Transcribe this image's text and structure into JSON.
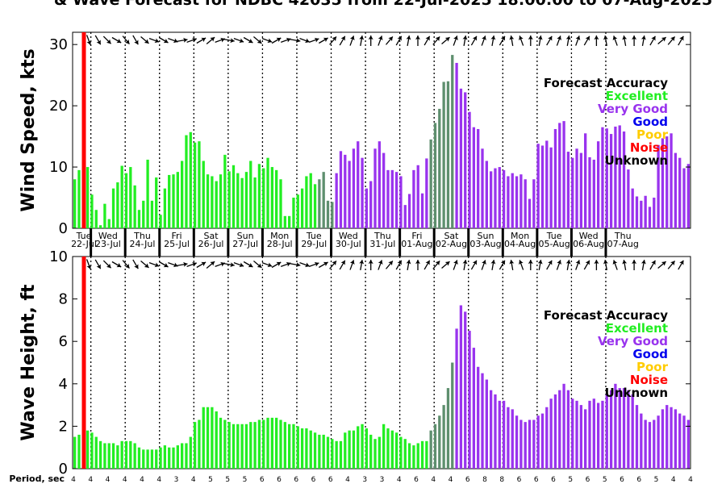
{
  "title": "& Wave Forecast for NDBC 42035 from 22-Jul-2025 18:00:00 to 07-Aug-2025",
  "legend": {
    "heading": "Forecast Accuracy",
    "items": [
      {
        "label": "Excellent",
        "color": "#22ee22"
      },
      {
        "label": "Very Good",
        "color": "#9933ee"
      },
      {
        "label": "Good",
        "color": "#0000ee"
      },
      {
        "label": "Poor",
        "color": "#ffcc00"
      },
      {
        "label": "Noise",
        "color": "#ff0000"
      },
      {
        "label": "Unknown",
        "color": "#000000"
      }
    ]
  },
  "colors": {
    "excellent": "#22ee22",
    "very_good": "#9933ee",
    "transition": "#5e8f6e",
    "now_line": "#ff0000"
  },
  "days": [
    {
      "dow": "Tue",
      "date": "22-Jul"
    },
    {
      "dow": "Wed",
      "date": "23-Jul"
    },
    {
      "dow": "Thu",
      "date": "24-Jul"
    },
    {
      "dow": "Fri",
      "date": "25-Jul"
    },
    {
      "dow": "Sat",
      "date": "26-Jul"
    },
    {
      "dow": "Sun",
      "date": "27-Jul"
    },
    {
      "dow": "Mon",
      "date": "28-Jul"
    },
    {
      "dow": "Tue",
      "date": "29-Jul"
    },
    {
      "dow": "Wed",
      "date": "30-Jul"
    },
    {
      "dow": "Thu",
      "date": "31-Jul"
    },
    {
      "dow": "Fri",
      "date": "01-Aug"
    },
    {
      "dow": "Sat",
      "date": "02-Aug"
    },
    {
      "dow": "Sun",
      "date": "03-Aug"
    },
    {
      "dow": "Mon",
      "date": "04-Aug"
    },
    {
      "dow": "Tue",
      "date": "05-Aug"
    },
    {
      "dow": "Wed",
      "date": "06-Aug"
    },
    {
      "dow": "Thu",
      "date": "07-Aug"
    }
  ],
  "period": {
    "label": "Period, sec",
    "values": [
      "4",
      "4",
      "4",
      "4",
      "4",
      "4",
      "3",
      "4",
      "5",
      "5",
      "5",
      "6",
      "6",
      "6",
      "6",
      "6",
      "4",
      "3",
      "3",
      "4",
      "6",
      "4",
      "4",
      "6",
      "8",
      "8",
      "6",
      "6",
      "6",
      "5",
      "6",
      "5",
      "6",
      "6",
      "5",
      "4",
      "4"
    ]
  },
  "chart_data": [
    {
      "type": "bar",
      "title": "& Wave Forecast for NDBC 42035 from 22-Jul-2025 18:00:00 to 07-Aug-2025",
      "ylabel": "Wind Speed, kts",
      "ylim": [
        0,
        32
      ],
      "yticks": [
        0,
        10,
        20,
        30
      ],
      "x_start": "22-Jul-2025 18:00",
      "x_step_hours": 3,
      "values": [
        8,
        9.5,
        1,
        10,
        5.5,
        3,
        0.5,
        4,
        1.5,
        6.5,
        7.5,
        10.2,
        9,
        10,
        7,
        3,
        4.5,
        11.2,
        4.5,
        8.3,
        2.2,
        6.5,
        8.7,
        8.8,
        9.2,
        11,
        15.2,
        15.7,
        14,
        14.2,
        11,
        8.8,
        8.5,
        7.7,
        8.8,
        12,
        9.3,
        10.3,
        9,
        8.2,
        9.2,
        11,
        8.3,
        10.5,
        9.8,
        11.5,
        10,
        9.5,
        8,
        2,
        2,
        5,
        5.5,
        6.5,
        8.5,
        9,
        7.2,
        8,
        9.2,
        4.5,
        4.3,
        9,
        12.6,
        12,
        11,
        13,
        14.2,
        11.5,
        6.5,
        7.7,
        13,
        14.2,
        12.3,
        9.5,
        9.5,
        9.2,
        8.5,
        3.8,
        5.6,
        9.5,
        10.3,
        5.7,
        11.4,
        14.5,
        17.2,
        19.5,
        23.9,
        24,
        28.3,
        27,
        22.8,
        22.2,
        19,
        16.5,
        16.2,
        13,
        11,
        9.3,
        9.8,
        10,
        9.5,
        8.5,
        9,
        8.5,
        8.8,
        8,
        4.8,
        8,
        13.8,
        13.5,
        14.3,
        13.2,
        16.2,
        17.2,
        17.5,
        12.5,
        11.5,
        13,
        12.3,
        15.5,
        11.6,
        11.2,
        14.2,
        16.5,
        16.3,
        15.4,
        16.6,
        16.8,
        15.8,
        9.6,
        6.5,
        5.2,
        4.5,
        5.3,
        3.5,
        5,
        13.6,
        14.7,
        15,
        15.5,
        12.3,
        11.5,
        9.8,
        10.5
      ]
    },
    {
      "type": "bar",
      "ylabel": "Wave Height, ft",
      "ylim": [
        0,
        10
      ],
      "yticks": [
        0,
        2,
        4,
        6,
        8,
        10
      ],
      "x_start": "22-Jul-2025 18:00",
      "x_step_hours": 3,
      "values": [
        1.5,
        1.6,
        1.5,
        1.8,
        1.7,
        1.5,
        1.3,
        1.2,
        1.2,
        1.2,
        1.1,
        1.3,
        1.3,
        1.3,
        1.2,
        1,
        0.9,
        0.9,
        0.9,
        0.9,
        1,
        1.1,
        1,
        1,
        1.1,
        1.2,
        1.2,
        1.5,
        2.2,
        2.3,
        2.9,
        2.9,
        2.9,
        2.7,
        2.4,
        2.3,
        2.2,
        2.1,
        2.1,
        2.1,
        2.1,
        2.2,
        2.2,
        2.3,
        2.3,
        2.4,
        2.4,
        2.4,
        2.3,
        2.2,
        2.1,
        2.1,
        2,
        1.9,
        1.9,
        1.8,
        1.7,
        1.6,
        1.6,
        1.5,
        1.4,
        1.3,
        1.3,
        1.7,
        1.8,
        1.8,
        2,
        2.1,
        1.9,
        1.6,
        1.4,
        1.5,
        2.1,
        1.9,
        1.8,
        1.7,
        1.5,
        1.4,
        1.2,
        1.1,
        1.2,
        1.3,
        1.3,
        1.8,
        2.1,
        2.5,
        3,
        3.8,
        5,
        6.6,
        7.7,
        7.4,
        6.5,
        5.7,
        4.8,
        4.5,
        4.2,
        3.7,
        3.5,
        3.2,
        3.2,
        2.9,
        2.8,
        2.5,
        2.3,
        2.2,
        2.3,
        2.3,
        2.5,
        2.6,
        2.9,
        3.3,
        3.5,
        3.7,
        4,
        3.7,
        3.3,
        3.2,
        3,
        2.8,
        3.2,
        3.3,
        3.1,
        3.2,
        3.5,
        3.7,
        4,
        3.8,
        3.8,
        3.7,
        3.5,
        3,
        2.6,
        2.3,
        2.2,
        2.3,
        2.5,
        2.8,
        3,
        2.9,
        2.8,
        2.6,
        2.5,
        2.3
      ]
    }
  ]
}
